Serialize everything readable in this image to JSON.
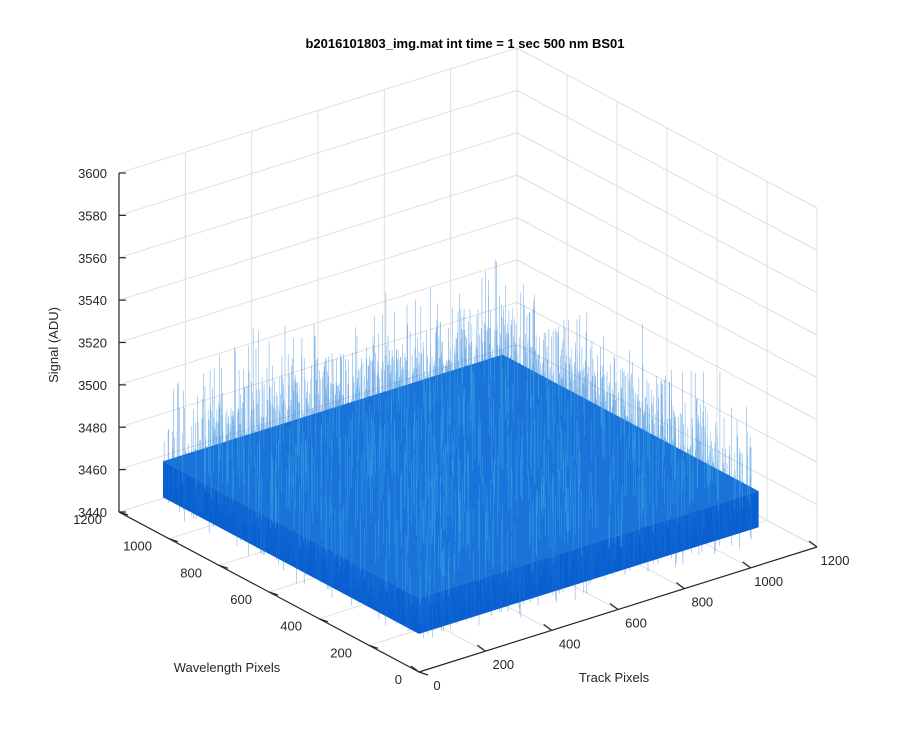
{
  "chart_data": {
    "type": "surface",
    "title": "b2016101803_img.mat int time = 1 sec  500 nm BS01",
    "xlabel": "Track Pixels",
    "ylabel": "Wavelength Pixels",
    "zlabel": "Signal (ADU)",
    "xlim": [
      0,
      1200
    ],
    "ylim": [
      0,
      1200
    ],
    "zlim": [
      3440,
      3600
    ],
    "xticks": [
      "0",
      "200",
      "400",
      "600",
      "800",
      "1000",
      "1200"
    ],
    "yticks": [
      "0",
      "200",
      "400",
      "600",
      "800",
      "1000",
      "1200"
    ],
    "zticks": [
      "3440",
      "3460",
      "3480",
      "3500",
      "3520",
      "3540",
      "3560",
      "3580",
      "3600"
    ],
    "surface": {
      "x_range": [
        0,
        1024
      ],
      "y_range": [
        0,
        1024
      ],
      "mean_signal": 3475,
      "noise_min": 3450,
      "noise_max": 3530
    },
    "grid": true,
    "colors": {
      "surface": "#1a73d8",
      "surface_dark": "#0a5fd0",
      "highlight": "#3fb0e8"
    }
  }
}
